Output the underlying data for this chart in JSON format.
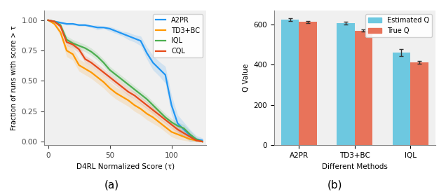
{
  "left": {
    "title": "(a)",
    "xlabel": "D4RL Normalized Score (τ)",
    "ylabel": "Fraction of runs with score > τ",
    "xlim": [
      -3,
      128
    ],
    "ylim": [
      -0.03,
      1.08
    ],
    "xticks": [
      0,
      50,
      100
    ],
    "yticks": [
      0.0,
      0.25,
      0.5,
      0.75,
      1.0
    ],
    "lines": {
      "A2PR": {
        "color": "#2196F3",
        "x": [
          0,
          5,
          10,
          15,
          20,
          25,
          30,
          35,
          40,
          45,
          50,
          55,
          60,
          65,
          70,
          75,
          80,
          85,
          90,
          95,
          100,
          105,
          110,
          115,
          120,
          125
        ],
        "y": [
          1.0,
          0.99,
          0.98,
          0.97,
          0.97,
          0.96,
          0.96,
          0.95,
          0.94,
          0.94,
          0.93,
          0.91,
          0.89,
          0.87,
          0.85,
          0.83,
          0.73,
          0.65,
          0.6,
          0.55,
          0.3,
          0.15,
          0.1,
          0.05,
          0.02,
          0.01
        ],
        "shade_upper": [
          1.0,
          1.0,
          0.99,
          0.98,
          0.98,
          0.97,
          0.97,
          0.96,
          0.96,
          0.95,
          0.95,
          0.93,
          0.91,
          0.9,
          0.88,
          0.87,
          0.78,
          0.71,
          0.66,
          0.62,
          0.38,
          0.22,
          0.16,
          0.1,
          0.05,
          0.03
        ],
        "shade_lower": [
          1.0,
          0.98,
          0.97,
          0.96,
          0.96,
          0.95,
          0.95,
          0.94,
          0.92,
          0.93,
          0.91,
          0.89,
          0.87,
          0.84,
          0.82,
          0.79,
          0.68,
          0.59,
          0.54,
          0.48,
          0.22,
          0.08,
          0.04,
          0.0,
          0.0,
          0.0
        ]
      },
      "TD3+BC": {
        "color": "#FF9800",
        "x": [
          0,
          5,
          10,
          15,
          20,
          25,
          30,
          35,
          40,
          45,
          50,
          55,
          60,
          65,
          70,
          75,
          80,
          85,
          90,
          95,
          100,
          105,
          110,
          115,
          120,
          125
        ],
        "y": [
          1.0,
          0.97,
          0.9,
          0.75,
          0.72,
          0.63,
          0.6,
          0.57,
          0.53,
          0.49,
          0.44,
          0.4,
          0.37,
          0.34,
          0.3,
          0.27,
          0.23,
          0.2,
          0.16,
          0.12,
          0.08,
          0.06,
          0.04,
          0.02,
          0.01,
          0.0
        ],
        "shade_upper": [
          1.0,
          0.98,
          0.93,
          0.8,
          0.77,
          0.68,
          0.65,
          0.62,
          0.58,
          0.54,
          0.49,
          0.45,
          0.42,
          0.39,
          0.35,
          0.32,
          0.28,
          0.25,
          0.2,
          0.16,
          0.12,
          0.1,
          0.07,
          0.04,
          0.02,
          0.01
        ],
        "shade_lower": [
          1.0,
          0.96,
          0.87,
          0.7,
          0.67,
          0.58,
          0.55,
          0.52,
          0.48,
          0.44,
          0.39,
          0.35,
          0.32,
          0.29,
          0.25,
          0.22,
          0.18,
          0.15,
          0.12,
          0.08,
          0.04,
          0.02,
          0.01,
          0.0,
          0.0,
          0.0
        ]
      },
      "IQL": {
        "color": "#4CAF50",
        "x": [
          0,
          5,
          10,
          15,
          20,
          25,
          30,
          35,
          40,
          45,
          50,
          55,
          60,
          65,
          70,
          75,
          80,
          85,
          90,
          95,
          100,
          105,
          110,
          115,
          120,
          125
        ],
        "y": [
          1.0,
          0.99,
          0.96,
          0.84,
          0.81,
          0.79,
          0.77,
          0.74,
          0.7,
          0.65,
          0.59,
          0.55,
          0.51,
          0.47,
          0.43,
          0.39,
          0.35,
          0.3,
          0.25,
          0.2,
          0.16,
          0.13,
          0.11,
          0.06,
          0.02,
          0.0
        ],
        "shade_upper": [
          1.0,
          1.0,
          0.98,
          0.87,
          0.84,
          0.82,
          0.8,
          0.77,
          0.73,
          0.68,
          0.62,
          0.58,
          0.54,
          0.5,
          0.46,
          0.42,
          0.38,
          0.33,
          0.28,
          0.23,
          0.19,
          0.16,
          0.14,
          0.09,
          0.04,
          0.01
        ],
        "shade_lower": [
          1.0,
          0.98,
          0.94,
          0.81,
          0.78,
          0.76,
          0.74,
          0.71,
          0.67,
          0.62,
          0.56,
          0.52,
          0.48,
          0.44,
          0.4,
          0.36,
          0.32,
          0.27,
          0.22,
          0.17,
          0.13,
          0.1,
          0.08,
          0.03,
          0.0,
          0.0
        ]
      },
      "CQL": {
        "color": "#E64A19",
        "x": [
          0,
          5,
          10,
          15,
          20,
          25,
          30,
          35,
          40,
          45,
          50,
          55,
          60,
          65,
          70,
          75,
          80,
          85,
          90,
          95,
          100,
          105,
          110,
          115,
          120,
          125
        ],
        "y": [
          1.0,
          0.99,
          0.95,
          0.82,
          0.8,
          0.76,
          0.68,
          0.65,
          0.61,
          0.57,
          0.53,
          0.49,
          0.45,
          0.41,
          0.38,
          0.34,
          0.3,
          0.26,
          0.22,
          0.18,
          0.14,
          0.1,
          0.07,
          0.04,
          0.01,
          0.0
        ],
        "shade_upper": [
          1.0,
          1.0,
          0.97,
          0.85,
          0.83,
          0.79,
          0.71,
          0.68,
          0.64,
          0.6,
          0.56,
          0.52,
          0.48,
          0.44,
          0.41,
          0.37,
          0.33,
          0.29,
          0.25,
          0.21,
          0.17,
          0.13,
          0.1,
          0.06,
          0.02,
          0.0
        ],
        "shade_lower": [
          1.0,
          0.98,
          0.93,
          0.79,
          0.77,
          0.73,
          0.65,
          0.62,
          0.58,
          0.54,
          0.5,
          0.46,
          0.42,
          0.38,
          0.35,
          0.31,
          0.27,
          0.23,
          0.19,
          0.15,
          0.11,
          0.07,
          0.04,
          0.02,
          0.0,
          0.0
        ]
      }
    }
  },
  "right": {
    "title": "(b)",
    "xlabel": "Different Methods",
    "ylabel": "Q Value",
    "ylim": [
      0,
      670
    ],
    "yticks": [
      0,
      200,
      400,
      600
    ],
    "categories": [
      "A2PR",
      "TD3+BC",
      "IQL"
    ],
    "estimated_q": [
      625,
      607,
      462
    ],
    "estimated_q_err": [
      7,
      6,
      18
    ],
    "true_q": [
      614,
      570,
      412
    ],
    "true_q_err": [
      5,
      5,
      8
    ],
    "color_estimated": "#6DC8E0",
    "color_true": "#E8735A"
  },
  "bg_color": "#F0F0F0"
}
